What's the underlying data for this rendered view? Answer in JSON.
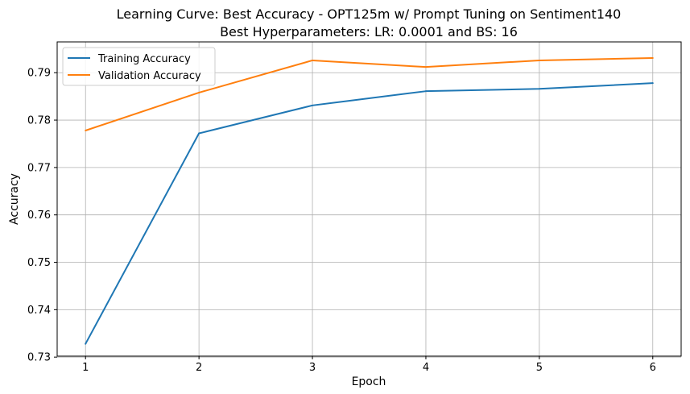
{
  "chart_data": {
    "type": "line",
    "title": "Learning Curve: Best Accuracy - OPT125m w/ Prompt Tuning on Sentiment140",
    "subtitle": "Best Hyperparameters: LR: 0.0001 and BS: 16",
    "xlabel": "Epoch",
    "ylabel": "Accuracy",
    "x": [
      1,
      2,
      3,
      4,
      5,
      6
    ],
    "xticks": [
      "1",
      "2",
      "3",
      "4",
      "5",
      "6"
    ],
    "yticks": [
      "0.73",
      "0.74",
      "0.75",
      "0.76",
      "0.77",
      "0.78",
      "0.79"
    ],
    "ytick_values": [
      0.73,
      0.74,
      0.75,
      0.76,
      0.77,
      0.78,
      0.79
    ],
    "xlim": [
      0.75,
      6.25
    ],
    "ylim": [
      0.7302,
      0.7965
    ],
    "grid": true,
    "legend_position": "top-left",
    "series": [
      {
        "name": "Training Accuracy",
        "color": "#1f77b4",
        "values": [
          0.7328,
          0.7772,
          0.7831,
          0.7861,
          0.7866,
          0.7878
        ]
      },
      {
        "name": "Validation Accuracy",
        "color": "#ff7f0e",
        "values": [
          0.7778,
          0.7858,
          0.7926,
          0.7912,
          0.7926,
          0.7931
        ]
      }
    ]
  }
}
